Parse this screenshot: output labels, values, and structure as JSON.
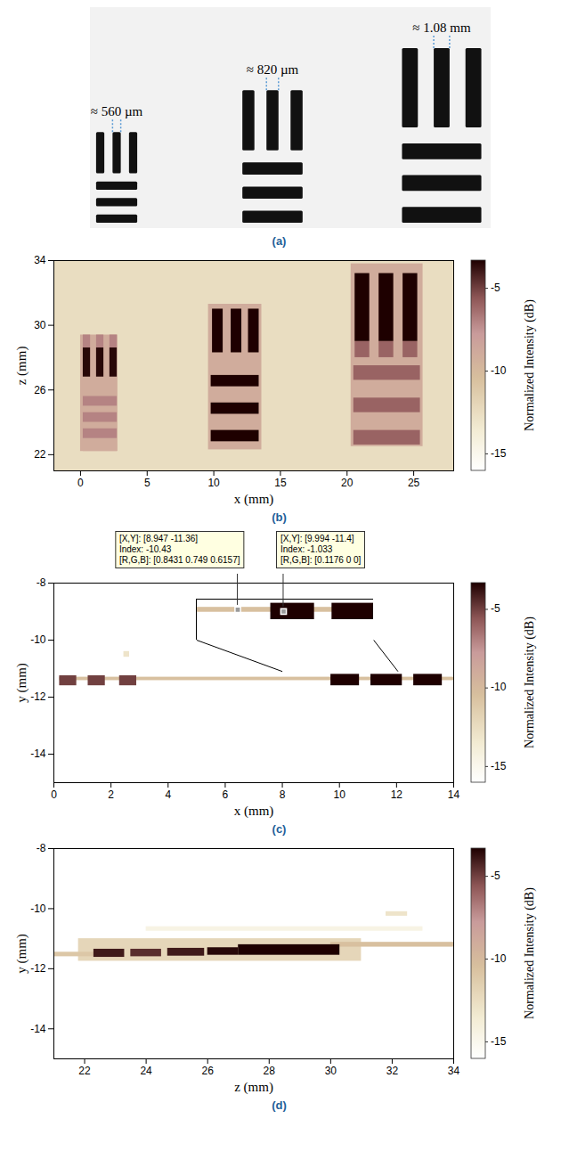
{
  "chart_data": [
    {
      "type": "diagram",
      "caption": "(a)",
      "targets": [
        {
          "label": "≈ 560 µm",
          "width_mm": 0.56
        },
        {
          "label": "≈ 820 µm",
          "width_mm": 0.82
        },
        {
          "label": "≈ 1.08 mm",
          "width_mm": 1.08
        }
      ]
    },
    {
      "type": "heatmap",
      "caption": "(b)",
      "x_label": "x (mm)",
      "y_label": "z (mm)",
      "xlim": [
        -2,
        28
      ],
      "xticks": [
        0,
        5,
        10,
        15,
        20,
        25
      ],
      "ylim": [
        21,
        34
      ],
      "yticks": [
        22,
        26,
        30,
        34
      ],
      "colorbar": {
        "label": "Normalized Intensity (dB)",
        "range": [
          -16,
          -3.3
        ],
        "ticks": [
          -15,
          -10,
          -5
        ]
      },
      "background": -12.5,
      "cells": [
        {
          "x1": 0.0,
          "x2": 2.8,
          "y1": 22.2,
          "y2": 29.4,
          "value": -9
        },
        {
          "x1": 0.2,
          "x2": 0.75,
          "y1": 28.6,
          "y2": 29.4,
          "value": -7
        },
        {
          "x1": 1.2,
          "x2": 1.75,
          "y1": 28.6,
          "y2": 29.4,
          "value": -7
        },
        {
          "x1": 2.2,
          "x2": 2.75,
          "y1": 28.6,
          "y2": 29.4,
          "value": -7
        },
        {
          "x1": 0.2,
          "x2": 0.75,
          "y1": 26.8,
          "y2": 28.6,
          "value": -3.5
        },
        {
          "x1": 1.2,
          "x2": 1.75,
          "y1": 26.8,
          "y2": 28.6,
          "value": -3.5
        },
        {
          "x1": 2.2,
          "x2": 2.75,
          "y1": 26.8,
          "y2": 28.6,
          "value": -3.5
        },
        {
          "x1": 0.2,
          "x2": 2.75,
          "y1": 25.0,
          "y2": 25.6,
          "value": -7
        },
        {
          "x1": 0.2,
          "x2": 2.75,
          "y1": 24.0,
          "y2": 24.6,
          "value": -7
        },
        {
          "x1": 0.2,
          "x2": 2.75,
          "y1": 23.0,
          "y2": 23.6,
          "value": -7
        },
        {
          "x1": 0.2,
          "x2": 2.75,
          "y1": 22.2,
          "y2": 22.7,
          "value": -9
        },
        {
          "x1": 9.6,
          "x2": 13.6,
          "y1": 22.3,
          "y2": 31.3,
          "value": -9
        },
        {
          "x1": 9.9,
          "x2": 10.7,
          "y1": 28.3,
          "y2": 31.0,
          "value": -2
        },
        {
          "x1": 11.3,
          "x2": 12.1,
          "y1": 28.3,
          "y2": 31.0,
          "value": -2
        },
        {
          "x1": 12.6,
          "x2": 13.4,
          "y1": 28.3,
          "y2": 31.0,
          "value": -2
        },
        {
          "x1": 9.8,
          "x2": 13.4,
          "y1": 26.2,
          "y2": 26.9,
          "value": -2.5
        },
        {
          "x1": 9.8,
          "x2": 13.4,
          "y1": 24.5,
          "y2": 25.2,
          "value": -2.5
        },
        {
          "x1": 9.8,
          "x2": 13.4,
          "y1": 22.8,
          "y2": 23.5,
          "value": -2.5
        },
        {
          "x1": 20.3,
          "x2": 25.7,
          "y1": 22.5,
          "y2": 33.8,
          "value": -9
        },
        {
          "x1": 20.6,
          "x2": 21.7,
          "y1": 28.0,
          "y2": 29.0,
          "value": -6
        },
        {
          "x1": 22.4,
          "x2": 23.5,
          "y1": 28.0,
          "y2": 29.0,
          "value": -6
        },
        {
          "x1": 24.2,
          "x2": 25.3,
          "y1": 28.0,
          "y2": 29.0,
          "value": -6
        },
        {
          "x1": 20.6,
          "x2": 21.7,
          "y1": 29.0,
          "y2": 33.2,
          "value": -2
        },
        {
          "x1": 22.4,
          "x2": 23.5,
          "y1": 29.0,
          "y2": 33.2,
          "value": -2
        },
        {
          "x1": 24.2,
          "x2": 25.3,
          "y1": 29.0,
          "y2": 33.2,
          "value": -2
        },
        {
          "x1": 20.5,
          "x2": 25.5,
          "y1": 26.6,
          "y2": 27.5,
          "value": -6
        },
        {
          "x1": 20.5,
          "x2": 25.5,
          "y1": 24.6,
          "y2": 25.5,
          "value": -6
        },
        {
          "x1": 20.5,
          "x2": 25.5,
          "y1": 22.6,
          "y2": 23.5,
          "value": -6
        }
      ]
    },
    {
      "type": "heatmap",
      "caption": "(c)",
      "x_label": "x (mm)",
      "y_label": "y (mm)",
      "xlim": [
        0,
        14
      ],
      "xticks": [
        0,
        2,
        4,
        6,
        8,
        10,
        12,
        14
      ],
      "ylim": [
        -15,
        -8
      ],
      "yticks": [
        -14,
        -12,
        -10,
        -8
      ],
      "colorbar": {
        "label": "Normalized Intensity (dB)",
        "range": [
          -16,
          -3.3
        ],
        "ticks": [
          -15,
          -10,
          -5
        ]
      },
      "background": -16,
      "cells": [
        {
          "x1": 0.2,
          "x2": 14,
          "y1": -11.42,
          "y2": -11.3,
          "value": -10.5
        },
        {
          "x1": 0.2,
          "x2": 0.8,
          "y1": -11.6,
          "y2": -11.25,
          "value": -5
        },
        {
          "x1": 1.2,
          "x2": 1.8,
          "y1": -11.6,
          "y2": -11.25,
          "value": -5
        },
        {
          "x1": 2.3,
          "x2": 2.9,
          "y1": -11.6,
          "y2": -11.25,
          "value": -5
        },
        {
          "x1": 2.45,
          "x2": 2.65,
          "y1": -10.6,
          "y2": -10.4,
          "value": -13
        },
        {
          "x1": 9.7,
          "x2": 10.7,
          "y1": -11.6,
          "y2": -11.2,
          "value": -1
        },
        {
          "x1": 11.1,
          "x2": 12.2,
          "y1": -11.6,
          "y2": -11.2,
          "value": -1
        },
        {
          "x1": 12.6,
          "x2": 13.6,
          "y1": -11.6,
          "y2": -11.2,
          "value": -1
        }
      ],
      "inset": {
        "box_x": [
          5.0,
          11.2
        ],
        "box_y": [
          -10.0,
          -8.55
        ],
        "source_x": [
          8.0,
          12.05
        ],
        "source_y": [
          -12.1,
          -11.1
        ]
      },
      "datatips": [
        {
          "x": 8.947,
          "y": -11.36,
          "lines": [
            "[X,Y]: [8.947 -11.36]",
            "Index: -10.43",
            "[R,G,B]: [0.8431 0.749 0.6157]"
          ]
        },
        {
          "x": 9.994,
          "y": -11.4,
          "lines": [
            "[X,Y]: [9.994 -11.4]",
            "Index: -1.033",
            "[R,G,B]: [0.1176 0 0]"
          ]
        }
      ]
    },
    {
      "type": "heatmap",
      "caption": "(d)",
      "x_label": "z (mm)",
      "y_label": "y (mm)",
      "xlim": [
        21,
        34
      ],
      "xticks": [
        22,
        24,
        26,
        28,
        30,
        32,
        34
      ],
      "ylim": [
        -15,
        -8
      ],
      "yticks": [
        -14,
        -12,
        -10,
        -8
      ],
      "colorbar": {
        "label": "Normalized Intensity (dB)",
        "range": [
          -16,
          -3.3
        ],
        "ticks": [
          -15,
          -10,
          -5
        ]
      },
      "background": -16,
      "cells": [
        {
          "x1": 21.8,
          "x2": 31.0,
          "y1": -11.75,
          "y2": -11.0,
          "value": -12
        },
        {
          "x1": 24.0,
          "x2": 33.0,
          "y1": -10.75,
          "y2": -10.6,
          "value": -14.5
        },
        {
          "x1": 31.8,
          "x2": 32.5,
          "y1": -10.25,
          "y2": -10.1,
          "value": -13
        },
        {
          "x1": 21.0,
          "x2": 22.5,
          "y1": -11.6,
          "y2": -11.45,
          "value": -11
        },
        {
          "x1": 30.0,
          "x2": 34.0,
          "y1": -11.28,
          "y2": -11.12,
          "value": -10.5
        },
        {
          "x1": 22.3,
          "x2": 23.3,
          "y1": -11.62,
          "y2": -11.35,
          "value": -4
        },
        {
          "x1": 23.5,
          "x2": 24.5,
          "y1": -11.6,
          "y2": -11.35,
          "value": -4.5
        },
        {
          "x1": 24.7,
          "x2": 25.9,
          "y1": -11.58,
          "y2": -11.32,
          "value": -4
        },
        {
          "x1": 26.0,
          "x2": 27.0,
          "y1": -11.55,
          "y2": -11.3,
          "value": -3.5
        },
        {
          "x1": 27.0,
          "x2": 30.3,
          "y1": -11.55,
          "y2": -11.2,
          "value": -2
        }
      ]
    }
  ]
}
